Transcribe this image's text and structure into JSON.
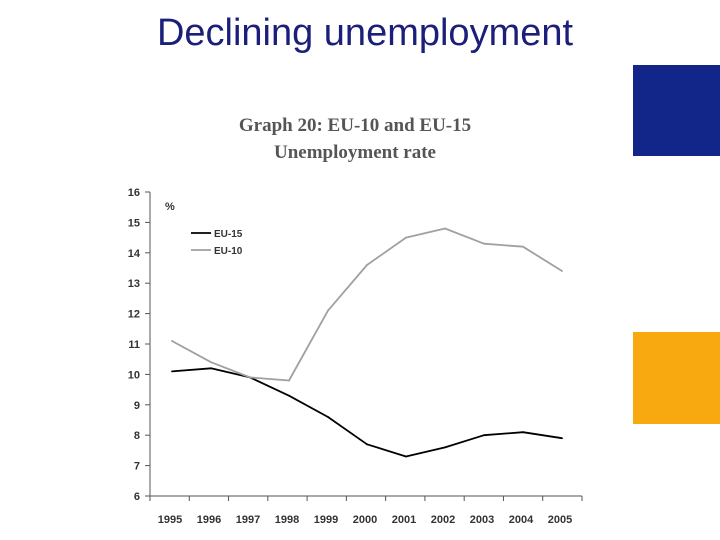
{
  "slide": {
    "title": "Declining unemployment",
    "colors": {
      "title": "#1b1f7a",
      "accent_blue": "#12268a",
      "accent_yellow": "#f7a90f"
    }
  },
  "chart_data": {
    "type": "line",
    "title": "Graph 20: EU-10 and EU-15",
    "subtitle": "Unemployment rate",
    "unit_label": "%",
    "x": [
      "1995",
      "1996",
      "1997",
      "1998",
      "1999",
      "2000",
      "2001",
      "2002",
      "2003",
      "2004",
      "2005"
    ],
    "ylim": [
      6,
      16
    ],
    "yticks": [
      "6",
      "7",
      "8",
      "9",
      "10",
      "11",
      "12",
      "13",
      "14",
      "15",
      "16"
    ],
    "grid": false,
    "legend_position": "top-left",
    "series": [
      {
        "name": "EU-15",
        "color": "#000000",
        "values": [
          10.1,
          10.2,
          9.9,
          9.3,
          8.6,
          7.7,
          7.3,
          7.6,
          8.0,
          8.1,
          7.9
        ]
      },
      {
        "name": "EU-10",
        "color": "#a0a0a0",
        "values": [
          11.1,
          10.4,
          9.9,
          9.8,
          12.1,
          13.6,
          14.5,
          14.8,
          14.3,
          14.2,
          13.4
        ]
      }
    ]
  }
}
